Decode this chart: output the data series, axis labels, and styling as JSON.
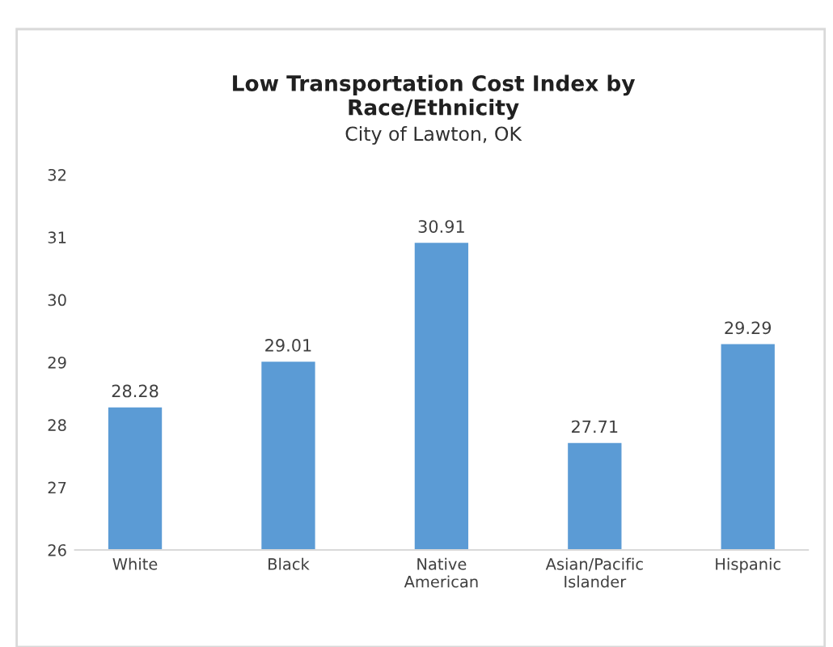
{
  "chart_data": {
    "type": "bar",
    "title": "Low Transportation Cost Index by\nRace/Ethnicity",
    "subtitle": "City of Lawton, OK",
    "categories": [
      "White",
      "Black",
      "Native\nAmerican",
      "Asian/Pacific\nIslander",
      "Hispanic"
    ],
    "values": [
      28.28,
      29.01,
      30.91,
      27.71,
      29.29
    ],
    "color": "#5b9bd5",
    "ylim": [
      26,
      32
    ],
    "yticks": [
      26,
      27,
      28,
      29,
      30,
      31,
      32
    ],
    "grid": false,
    "data_labels": true
  }
}
